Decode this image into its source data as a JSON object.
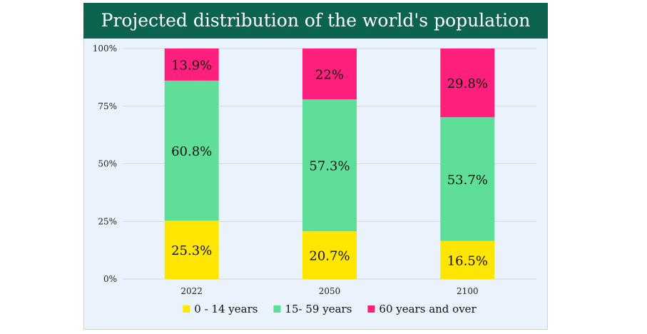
{
  "colors": {
    "title_bar": "#0c6350",
    "title_text": "#ffffff",
    "plot_background": "#eaf2fb",
    "gridline": "#d0dae6",
    "series": [
      "#ffe600",
      "#5fde99",
      "#ff1f7c"
    ]
  },
  "chart_data": {
    "type": "bar",
    "stacked": true,
    "percent_stacked": true,
    "title": "Projected distribution of the world's population",
    "xlabel": "",
    "ylabel": "",
    "categories": [
      "2022",
      "2050",
      "2100"
    ],
    "series": [
      {
        "name": "0 - 14 years",
        "values": [
          25.3,
          20.7,
          16.5
        ],
        "labels": [
          "25.3%",
          "20.7%",
          "16.5%"
        ],
        "color": "#ffe600"
      },
      {
        "name": "15- 59 years",
        "values": [
          60.8,
          57.3,
          53.7
        ],
        "labels": [
          "60.8%",
          "57.3%",
          "53.7%"
        ],
        "color": "#5fde99"
      },
      {
        "name": "60 years and over",
        "values": [
          13.9,
          22,
          29.8
        ],
        "labels": [
          "13.9%",
          "22%",
          "29.8%"
        ],
        "color": "#ff1f7c"
      }
    ],
    "ylim": [
      0,
      100
    ],
    "yticks": [
      0,
      25,
      50,
      75,
      100
    ],
    "ytick_labels": [
      "0%",
      "25%",
      "50%",
      "75%",
      "100%"
    ],
    "grid": true,
    "legend_position": "bottom"
  }
}
